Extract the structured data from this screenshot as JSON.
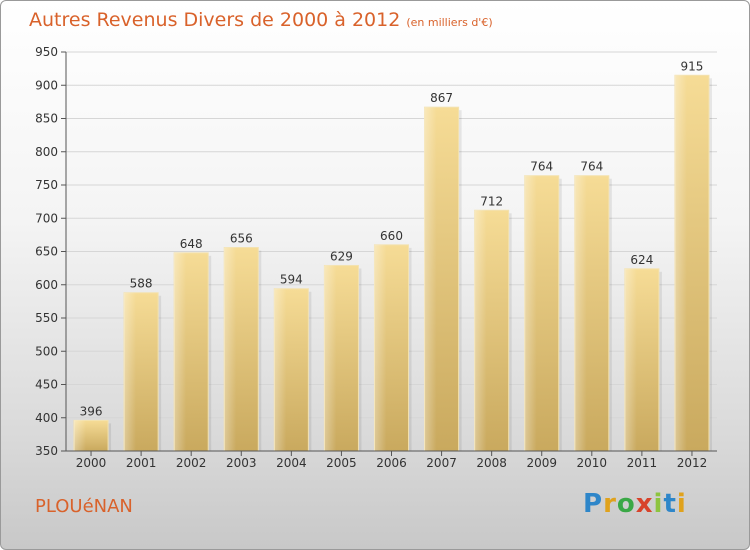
{
  "header": {
    "title": "Autres Revenus Divers de 2000 à 2012",
    "unit": "(en milliers d'€)"
  },
  "footer": {
    "place": "PLOUéNAN",
    "logo_text": "Proxiti",
    "logo_colors": [
      "#2e86c9",
      "#e0a21c",
      "#3aa846",
      "#d8432b",
      "#8dc43f",
      "#2e86c9",
      "#e0a21c"
    ]
  },
  "chart_data": {
    "type": "bar",
    "title": "Autres Revenus Divers de 2000 à 2012",
    "categories": [
      "2000",
      "2001",
      "2002",
      "2003",
      "2004",
      "2005",
      "2006",
      "2007",
      "2008",
      "2009",
      "2010",
      "2011",
      "2012"
    ],
    "values": [
      396,
      588,
      648,
      656,
      594,
      629,
      660,
      867,
      712,
      764,
      764,
      624,
      915
    ],
    "ylim": [
      350,
      950
    ],
    "yticks": [
      350,
      400,
      450,
      500,
      550,
      600,
      650,
      700,
      750,
      800,
      850,
      900,
      950
    ],
    "grid": true,
    "bar_color": "#e6c77e"
  }
}
